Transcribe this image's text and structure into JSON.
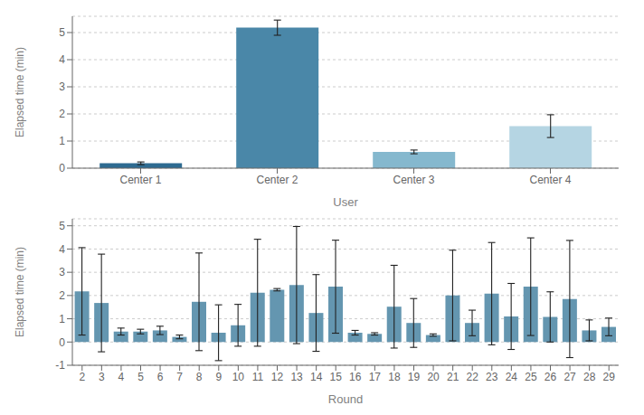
{
  "chart_data": [
    {
      "type": "bar",
      "categories": [
        "Center 1",
        "Center 2",
        "Center 3",
        "Center 4"
      ],
      "values": [
        0.18,
        5.18,
        0.6,
        1.55
      ],
      "errors": [
        0.05,
        0.28,
        0.07,
        0.42
      ],
      "colors": [
        "#2e6b91",
        "#4a87a8",
        "#85b8ce",
        "#b5d5e3"
      ],
      "xlabel": "User",
      "ylabel": "Elapsed time (min)",
      "ylim": [
        0,
        5.6
      ],
      "yticks": [
        0,
        1,
        2,
        3,
        4,
        5
      ],
      "grid": true
    },
    {
      "type": "bar",
      "categories": [
        "2",
        "3",
        "4",
        "5",
        "6",
        "7",
        "8",
        "9",
        "10",
        "11",
        "12",
        "13",
        "14",
        "15",
        "16",
        "17",
        "18",
        "19",
        "20",
        "21",
        "22",
        "23",
        "24",
        "25",
        "26",
        "27",
        "28",
        "29"
      ],
      "values": [
        2.18,
        1.68,
        0.45,
        0.45,
        0.5,
        0.22,
        1.73,
        0.4,
        0.72,
        2.12,
        2.25,
        2.45,
        1.25,
        2.38,
        0.4,
        0.35,
        1.52,
        0.82,
        0.3,
        2.0,
        0.82,
        2.08,
        1.1,
        2.38,
        1.08,
        1.85,
        0.5,
        0.65
      ],
      "errors": [
        1.88,
        2.1,
        0.15,
        0.1,
        0.18,
        0.08,
        2.1,
        1.2,
        0.9,
        2.3,
        0.05,
        2.52,
        1.65,
        2.0,
        0.1,
        0.05,
        1.78,
        1.05,
        0.05,
        1.95,
        0.55,
        2.2,
        1.42,
        2.1,
        1.08,
        2.52,
        0.45,
        0.38
      ],
      "color": "#6496b0",
      "xlabel": "Round",
      "ylabel": "Elapsed time (min)",
      "ylim": [
        -1,
        5.3
      ],
      "yticks": [
        -1,
        0,
        1,
        2,
        3,
        4,
        5
      ],
      "grid": true
    }
  ]
}
